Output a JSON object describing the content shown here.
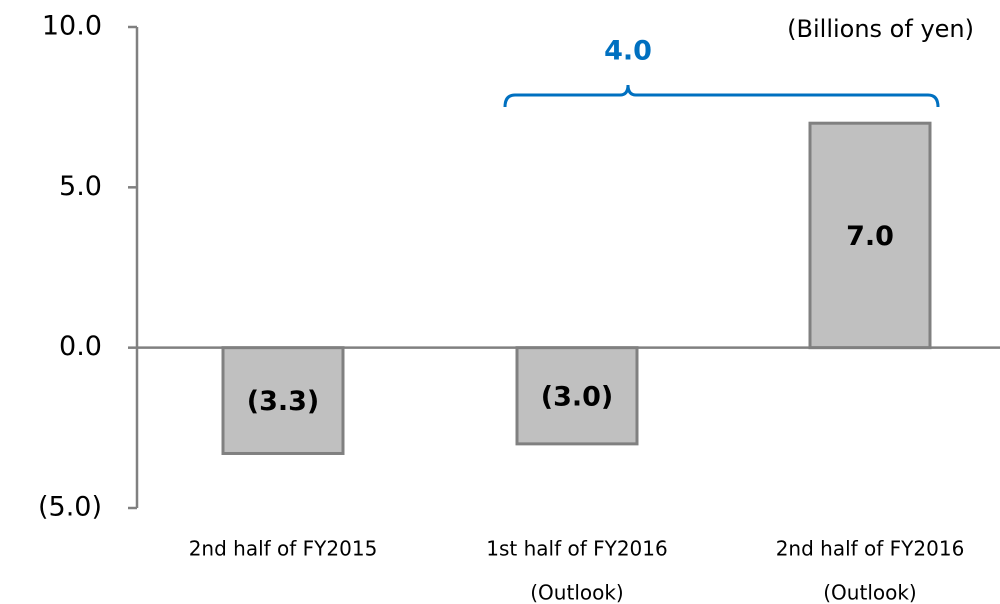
{
  "chart_data": {
    "type": "bar",
    "unit_label": "(Billions of yen)",
    "categories": [
      [
        "2nd half of FY2015"
      ],
      [
        "1st half of FY2016",
        "(Outlook)"
      ],
      [
        "2nd half of FY2016",
        "(Outlook)"
      ]
    ],
    "values": [
      -3.3,
      -3.0,
      7.0
    ],
    "value_labels": [
      "(3.3)",
      "(3.0)",
      "7.0"
    ],
    "color": "#c0c0c0",
    "edge_color": "#808080",
    "ylim": [
      -5,
      10
    ],
    "yticks": [
      {
        "value": 10,
        "label": "10.0"
      },
      {
        "value": 5,
        "label": "5.0"
      },
      {
        "value": 0,
        "label": "0.0"
      },
      {
        "value": -5,
        "label": "(5.0)"
      }
    ],
    "annotation": {
      "text": "4.0",
      "color": "#0070c0",
      "from": 1,
      "to": 2
    }
  }
}
